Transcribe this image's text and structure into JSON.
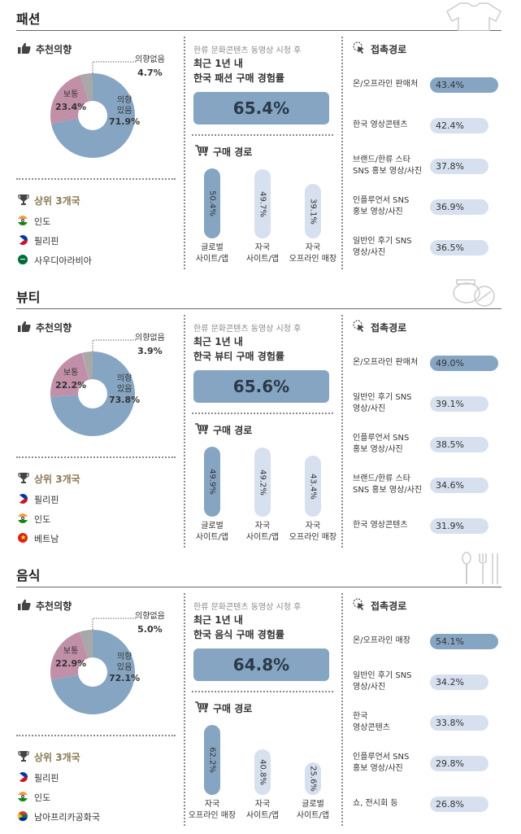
{
  "fashion": {
    "title": "패션",
    "rec_title": "추천의향",
    "pie": {
      "no": "의향없음",
      "no_val": "4.7%",
      "mid": "보통",
      "mid_val": "23.4%",
      "yes1": "의향",
      "yes2": "있음",
      "yes_val": "71.9%",
      "yes_pct": 71.9,
      "mid_pct": 23.4,
      "no_pct": 4.7
    },
    "top3_title": "상위 3개국",
    "countries": [
      "인도",
      "필리핀",
      "사우디아라비아"
    ],
    "caption": "한류 문화콘텐츠 동영상 시청 후",
    "line1": "최근 1년 내",
    "line2": "한국 패션 구매 경험률",
    "rate": "65.4%",
    "path_title": "구매 경로",
    "bars": [
      {
        "v": "50.4%",
        "pct": 50.4,
        "l1": "글로벌",
        "l2": "사이트/앱"
      },
      {
        "v": "49.7%",
        "pct": 49.7,
        "l1": "자국",
        "l2": "사이트/앱"
      },
      {
        "v": "39.1%",
        "pct": 39.1,
        "l1": "자국",
        "l2": "오프라인 매장"
      }
    ],
    "ch_title": "접촉경로",
    "channels": [
      {
        "l1": "온/오프라인 판매처",
        "l2": "",
        "v": "43.4%",
        "pct": 43.4
      },
      {
        "l1": "한국 영상콘텐츠",
        "l2": "",
        "v": "42.4%",
        "pct": 42.4
      },
      {
        "l1": "브랜드/한류 스타",
        "l2": "SNS 홍보 영상/사진",
        "v": "37.8%",
        "pct": 37.8
      },
      {
        "l1": "인플루언서 SNS",
        "l2": "홍보 영상/사진",
        "v": "36.9%",
        "pct": 36.9
      },
      {
        "l1": "일반인 후기 SNS",
        "l2": "영상/사진",
        "v": "36.5%",
        "pct": 36.5
      }
    ]
  },
  "beauty": {
    "title": "뷰티",
    "rec_title": "추천의향",
    "pie": {
      "no": "의향없음",
      "no_val": "3.9%",
      "mid": "보통",
      "mid_val": "22.2%",
      "yes1": "의향",
      "yes2": "있음",
      "yes_val": "73.8%",
      "yes_pct": 73.8,
      "mid_pct": 22.2,
      "no_pct": 3.9
    },
    "top3_title": "상위 3개국",
    "countries": [
      "필리핀",
      "인도",
      "베트남"
    ],
    "caption": "한류 문화콘텐츠 동영상 시청 후",
    "line1": "최근 1년 내",
    "line2": "한국 뷰티 구매 경험률",
    "rate": "65.6%",
    "path_title": "구매 경로",
    "bars": [
      {
        "v": "49.9%",
        "pct": 49.9,
        "l1": "글로벌",
        "l2": "사이트/앱"
      },
      {
        "v": "49.2%",
        "pct": 49.2,
        "l1": "자국",
        "l2": "사이트/앱"
      },
      {
        "v": "43.4%",
        "pct": 43.4,
        "l1": "자국",
        "l2": "오프라인 매장"
      }
    ],
    "ch_title": "접촉경로",
    "channels": [
      {
        "l1": "온/오프라인 판매처",
        "l2": "",
        "v": "49.0%",
        "pct": 49.0
      },
      {
        "l1": "일반인 후기 SNS",
        "l2": "영상/사진",
        "v": "39.1%",
        "pct": 39.1
      },
      {
        "l1": "인플루언서 SNS",
        "l2": "홍보 영상/사진",
        "v": "38.5%",
        "pct": 38.5
      },
      {
        "l1": "브랜드/한류 스타",
        "l2": "SNS 홍보 영상/사진",
        "v": "34.6%",
        "pct": 34.6
      },
      {
        "l1": "한국 영상콘텐츠",
        "l2": "",
        "v": "31.9%",
        "pct": 31.9
      }
    ]
  },
  "food": {
    "title": "음식",
    "rec_title": "추천의향",
    "pie": {
      "no": "의향없음",
      "no_val": "5.0%",
      "mid": "보통",
      "mid_val": "22.9%",
      "yes1": "의향",
      "yes2": "있음",
      "yes_val": "72.1%",
      "yes_pct": 72.1,
      "mid_pct": 22.9,
      "no_pct": 5.0
    },
    "top3_title": "상위 3개국",
    "countries": [
      "필리핀",
      "인도",
      "남아프리카공화국"
    ],
    "caption": "한류 문화콘텐츠 동영상 시청 후",
    "line1": "최근 1년 내",
    "line2": "한국 음식 구매 경험률",
    "rate": "64.8%",
    "path_title": "구매 경로",
    "bars": [
      {
        "v": "62.2%",
        "pct": 62.2,
        "l1": "자국",
        "l2": "오프라인 매장"
      },
      {
        "v": "40.8%",
        "pct": 40.8,
        "l1": "자국",
        "l2": "사이트/앱"
      },
      {
        "v": "25.6%",
        "pct": 25.6,
        "l1": "글로벌",
        "l2": "사이트/앱"
      }
    ],
    "ch_title": "접촉경로",
    "channels": [
      {
        "l1": "온/오프라인 매장",
        "l2": "",
        "v": "54.1%",
        "pct": 54.1
      },
      {
        "l1": "일반인 후기 SNS",
        "l2": "영상/사진",
        "v": "34.2%",
        "pct": 34.2
      },
      {
        "l1": "한국",
        "l2": "영상콘텐츠",
        "v": "33.8%",
        "pct": 33.8
      },
      {
        "l1": "인플루언서 SNS",
        "l2": "홍보 영상/사진",
        "v": "29.8%",
        "pct": 29.8
      },
      {
        "l1": "쇼, 전시회 등",
        "l2": "",
        "v": "26.8%",
        "pct": 26.8
      }
    ]
  },
  "colors": {
    "yes": "#86a5c2",
    "mid": "#c28fa8",
    "no": "#a8a8a8",
    "track": "#d6e0ee"
  }
}
